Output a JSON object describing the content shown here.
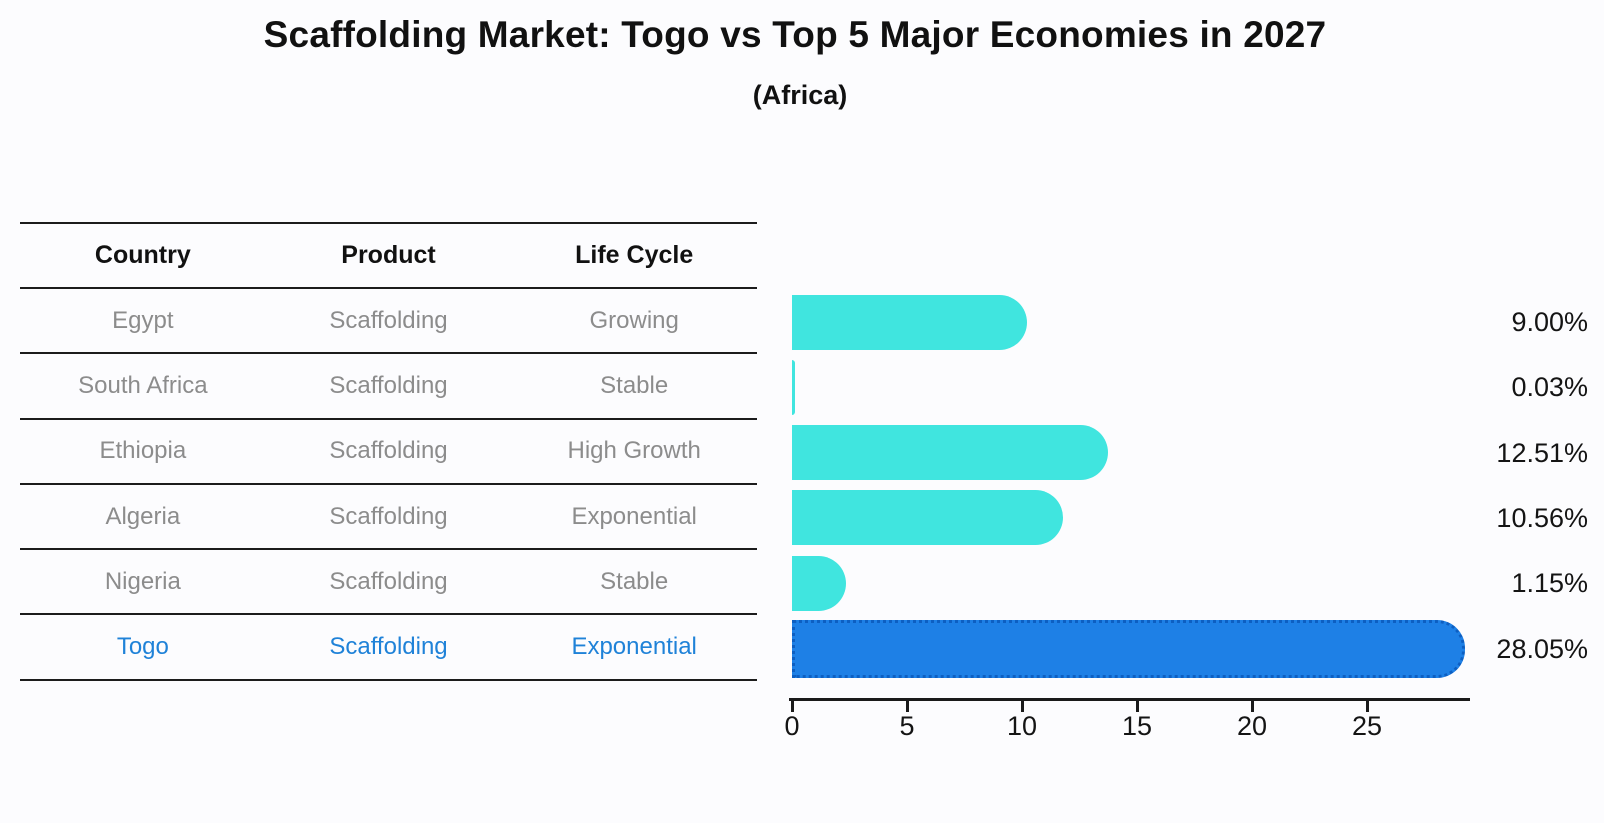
{
  "header": {
    "title": "Scaffolding Market: Togo vs Top 5 Major Economies in 2027",
    "subtitle": "(Africa)"
  },
  "table": {
    "headers": [
      "Country",
      "Product",
      "Life Cycle"
    ],
    "rows": [
      {
        "country": "Egypt",
        "product": "Scaffolding",
        "life_cycle": "Growing",
        "highlight": false
      },
      {
        "country": "South Africa",
        "product": "Scaffolding",
        "life_cycle": "Stable",
        "highlight": false
      },
      {
        "country": "Ethiopia",
        "product": "Scaffolding",
        "life_cycle": "High Growth",
        "highlight": false
      },
      {
        "country": "Algeria",
        "product": "Scaffolding",
        "life_cycle": "Exponential",
        "highlight": false
      },
      {
        "country": "Nigeria",
        "product": "Scaffolding",
        "life_cycle": "Stable",
        "highlight": false
      },
      {
        "country": "Togo",
        "product": "Scaffolding",
        "life_cycle": "Exponential",
        "highlight": true
      }
    ]
  },
  "chart_data": {
    "type": "bar",
    "orientation": "horizontal",
    "title": "Scaffolding Market: Togo vs Top 5 Major Economies in 2027",
    "subtitle": "(Africa)",
    "categories": [
      "Egypt",
      "South Africa",
      "Ethiopia",
      "Algeria",
      "Nigeria",
      "Togo"
    ],
    "values": [
      9.0,
      0.03,
      12.51,
      10.56,
      1.15,
      28.05
    ],
    "value_labels": [
      "9.00%",
      "0.03%",
      "12.51%",
      "10.56%",
      "1.15%",
      "28.05%"
    ],
    "x_ticks": [
      0,
      5,
      10,
      15,
      20,
      25
    ],
    "x_tick_labels": [
      "0",
      "5",
      "10",
      "15",
      "20",
      "25"
    ],
    "xlim": [
      0,
      29.5
    ],
    "grid": false,
    "legend": false,
    "bar_color": "#40E5DF",
    "highlight_color": "#1E80E6",
    "highlight_border_color": "#0d5fc2",
    "highlight_index": 5,
    "text_color": "#141414",
    "muted_text_color": "#8c8c8c",
    "highlight_text_color": "#1f82d8"
  }
}
